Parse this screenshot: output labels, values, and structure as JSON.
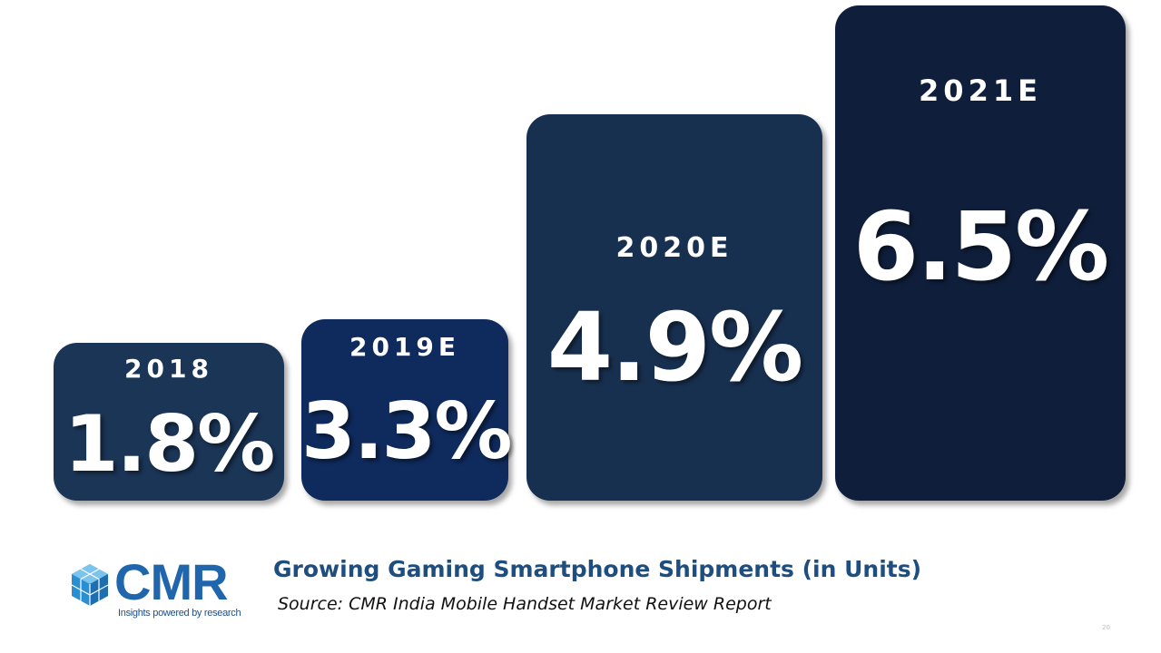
{
  "chart_data": {
    "type": "bar",
    "categories": [
      "2018",
      "2019E",
      "2020E",
      "2021E"
    ],
    "values": [
      1.8,
      3.3,
      4.9,
      6.5
    ],
    "value_labels": [
      "1.8%",
      "3.3%",
      "4.9%",
      "6.5%"
    ],
    "title": "Growing Gaming Smartphone Shipments (in Units)",
    "subtitle": "Source:  CMR India Mobile Handset Market Review Report",
    "colors": [
      "#1b3557",
      "#0f2a5c",
      "#183050",
      "#0f1f3b"
    ]
  },
  "logo": {
    "name": "CMR",
    "tagline": "Insights powered by research",
    "color": "#1f66ad",
    "icon": "cube-cluster-icon"
  },
  "page_number": "20"
}
